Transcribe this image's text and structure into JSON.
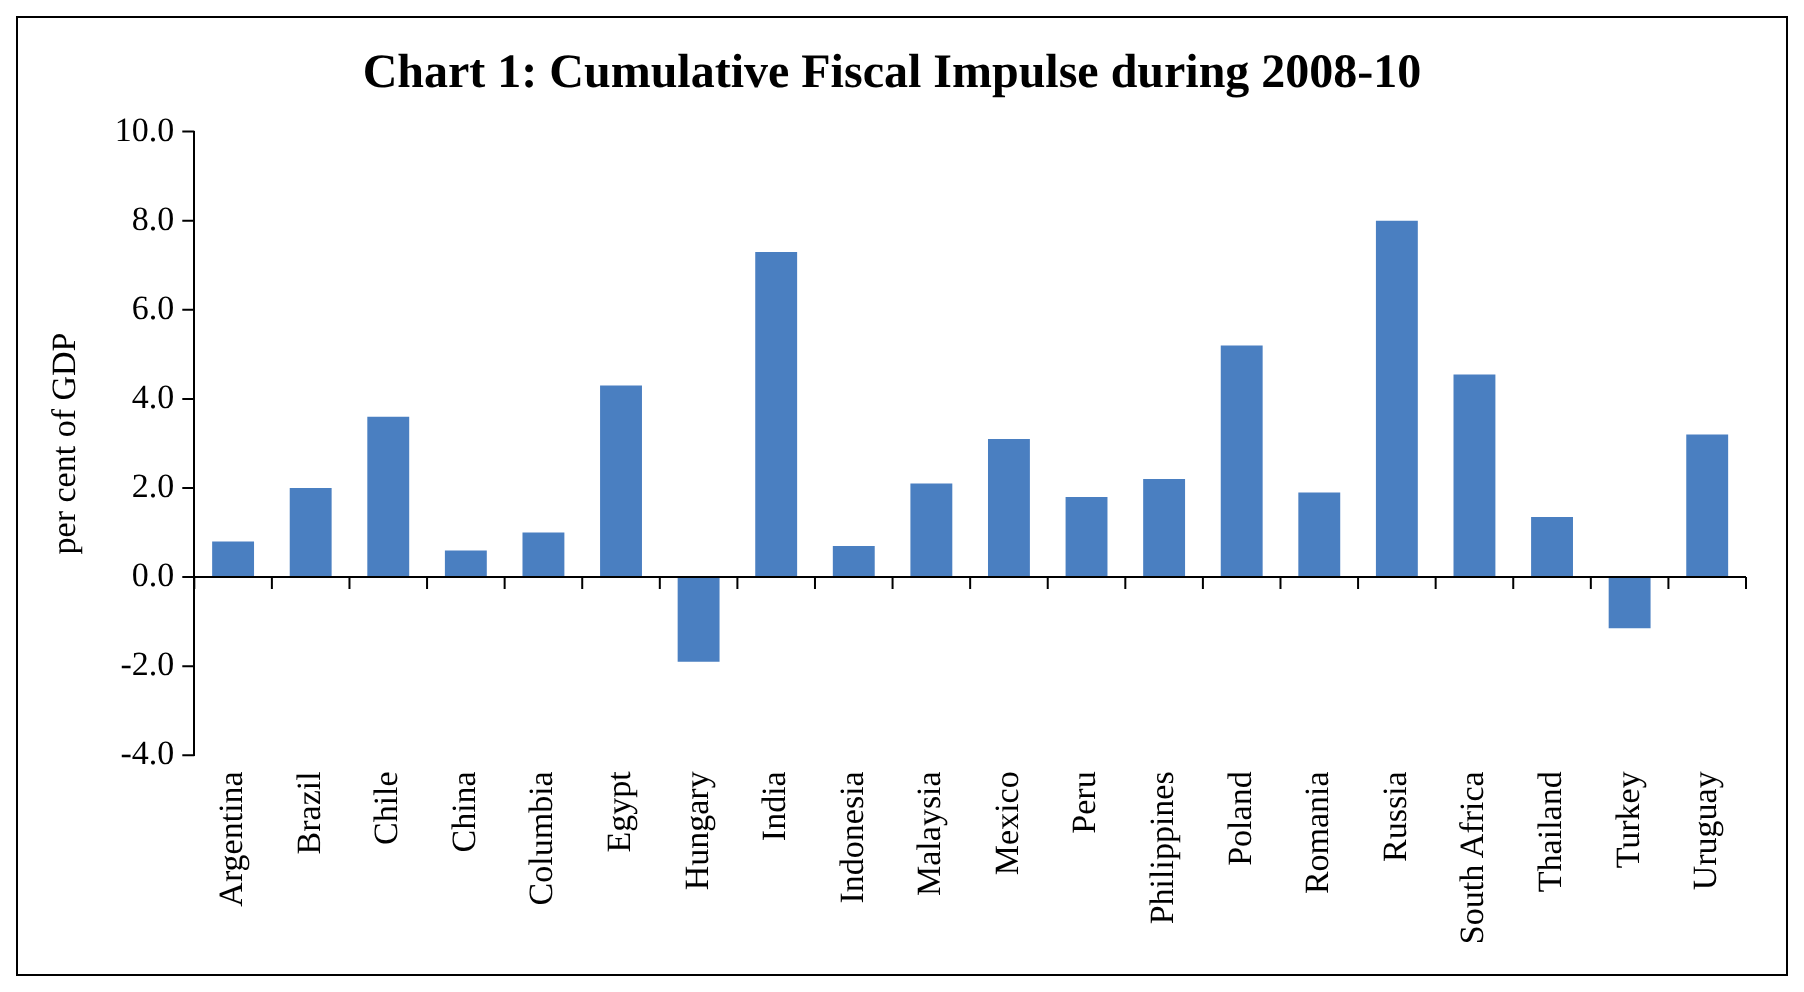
{
  "chart_data": {
    "type": "bar",
    "title": "Chart 1: Cumulative Fiscal Impulse during 2008-10",
    "ylabel": "per cent of GDP",
    "categories": [
      "Argentina",
      "Brazil",
      "Chile",
      "China",
      "Columbia",
      "Egypt",
      "Hungary",
      "India",
      "Indonesia",
      "Malaysia",
      "Mexico",
      "Peru",
      "Philippines",
      "Poland",
      "Romania",
      "Russia",
      "South Africa",
      "Thailand",
      "Turkey",
      "Uruguay"
    ],
    "values": [
      0.8,
      2.0,
      3.6,
      0.6,
      1.0,
      4.3,
      -1.9,
      7.3,
      0.7,
      2.1,
      3.1,
      1.8,
      2.2,
      5.2,
      1.9,
      8.0,
      4.55,
      1.35,
      -1.15,
      3.2
    ],
    "color": "#4a7fc1",
    "ylim": [
      -4,
      10
    ],
    "yticks": [
      {
        "value": -4,
        "label": "-4.0"
      },
      {
        "value": -2,
        "label": "-2.0"
      },
      {
        "value": 0,
        "label": "0.0"
      },
      {
        "value": 2,
        "label": "2.0"
      },
      {
        "value": 4,
        "label": "4.0"
      },
      {
        "value": 6,
        "label": "6.0"
      },
      {
        "value": 8,
        "label": "8.0"
      },
      {
        "value": 10,
        "label": "10.0"
      }
    ],
    "legend": false
  }
}
